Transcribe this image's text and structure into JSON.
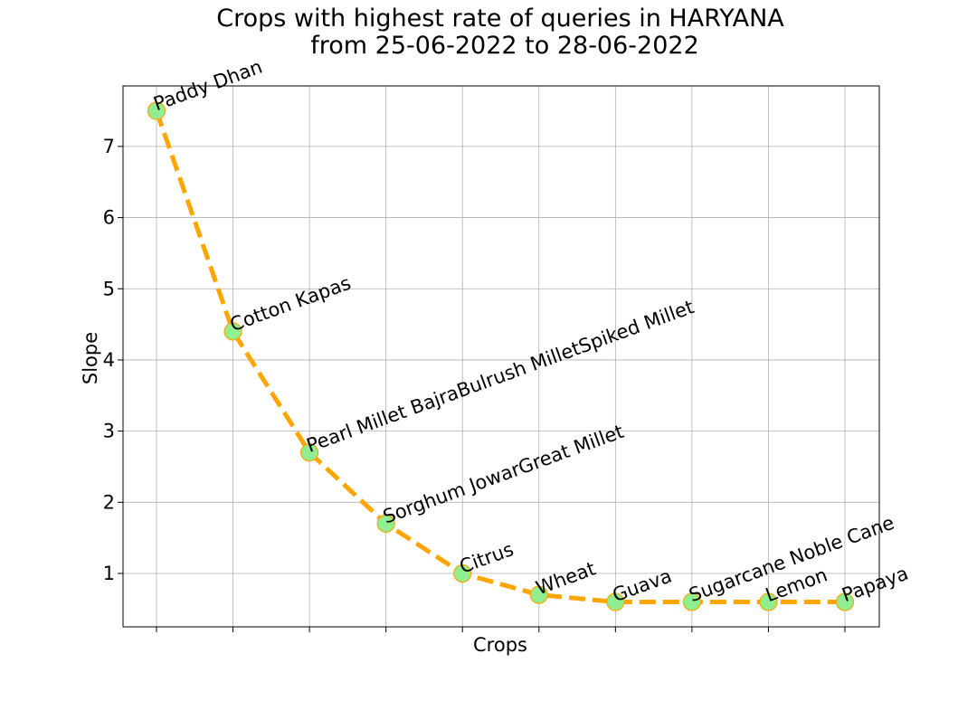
{
  "chart_data": {
    "type": "line",
    "title_lines": [
      "Crops with highest rate of queries in HARYANA",
      "from 25-06-2022 to 28-06-2022"
    ],
    "xlabel": "Crops",
    "ylabel": "Slope",
    "categories": [
      "Paddy Dhan",
      "Cotton Kapas",
      "Pearl Millet BajraBulrush MilletSpiked Millet",
      "Sorghum JowarGreat Millet",
      "Citrus",
      "Wheat",
      "Guava",
      "Sugarcane Noble Cane",
      "Lemon",
      "Papaya"
    ],
    "values": [
      7.5,
      4.4,
      2.7,
      1.7,
      1.0,
      0.7,
      0.6,
      0.6,
      0.6,
      0.6
    ],
    "ylim": [
      0.25,
      7.85
    ],
    "yticks": [
      1,
      2,
      3,
      4,
      5,
      6,
      7
    ],
    "grid": true,
    "line_color": "#FFA500",
    "line_style": "dashed",
    "marker_fill": "#90EE90",
    "marker_edge": "#FFA500"
  }
}
